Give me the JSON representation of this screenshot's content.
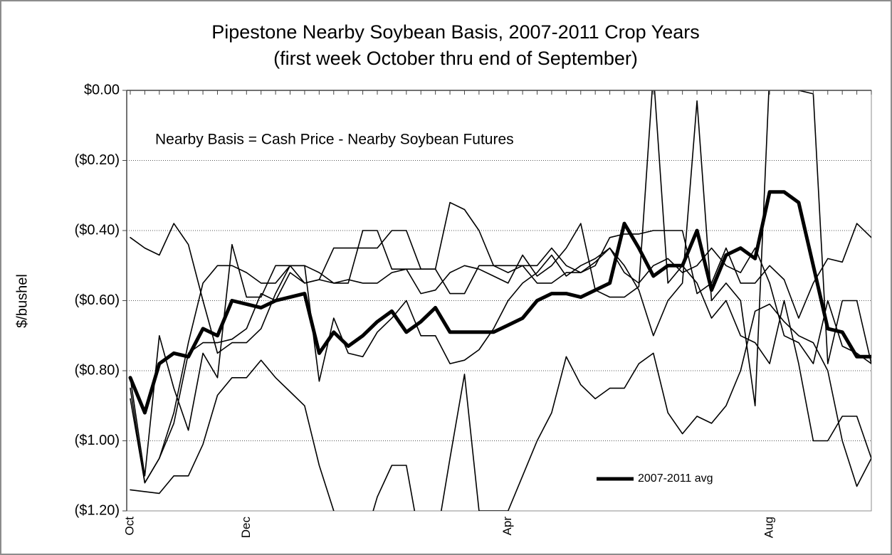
{
  "chart_data": {
    "type": "line",
    "title": "Pipestone Nearby Soybean Basis, 2007-2011 Crop Years",
    "subtitle": "(first week October thru end of September)",
    "y_label": "$/bushel",
    "annotation": "Nearby Basis = Cash Price - Nearby Soybean Futures",
    "categories": [
      "Oct",
      null,
      null,
      null,
      null,
      null,
      null,
      null,
      "Dec",
      null,
      null,
      null,
      null,
      null,
      null,
      null,
      null,
      null,
      null,
      null,
      null,
      null,
      null,
      null,
      null,
      null,
      "Apr",
      null,
      null,
      null,
      null,
      null,
      null,
      null,
      null,
      null,
      null,
      null,
      null,
      null,
      null,
      null,
      null,
      null,
      "Aug",
      null,
      null,
      null,
      null,
      null,
      null,
      null
    ],
    "ylim": [
      -1.2,
      0
    ],
    "yticks": [
      {
        "value": -1.2,
        "label": "($1.20)"
      },
      {
        "value": -1.0,
        "label": "($1.00)"
      },
      {
        "value": -0.8,
        "label": "($0.80)"
      },
      {
        "value": -0.6,
        "label": "($0.60)"
      },
      {
        "value": -0.4,
        "label": "($0.40)"
      },
      {
        "value": -0.2,
        "label": "($0.20)"
      },
      {
        "value": 0,
        "label": "$0.00"
      }
    ],
    "grid": true,
    "legend": "lower right",
    "series": [
      {
        "color": "#000000",
        "values": [
          -0.42,
          -0.45,
          -0.47,
          -0.38,
          -0.44,
          -0.6,
          -0.75,
          -0.72,
          -0.72,
          -0.68,
          -0.58,
          -0.5,
          -0.5,
          -0.52,
          -0.55,
          -0.54,
          -0.55,
          -0.55,
          -0.52,
          -0.51,
          -0.51,
          -0.51,
          -0.32,
          -0.34,
          -0.4,
          -0.5,
          -0.5,
          -0.5,
          -0.55,
          -0.55,
          -0.52,
          -0.52,
          -0.5,
          -0.42,
          -0.41,
          -0.41,
          -0.4,
          -0.4,
          -0.4,
          -0.58,
          -0.55,
          -0.45,
          -0.55,
          -0.55,
          -0.5,
          -0.54,
          -0.65,
          -0.55,
          -0.48,
          -0.49,
          -0.38,
          -0.42
        ]
      },
      {
        "color": "#000000",
        "values": [
          -0.85,
          -1.12,
          -1.05,
          -0.92,
          -0.72,
          -0.55,
          -0.5,
          -0.5,
          -0.52,
          -0.55,
          -0.55,
          -0.5,
          -0.5,
          -0.83,
          -0.65,
          -0.75,
          -0.76,
          -0.69,
          -0.65,
          -0.6,
          -0.7,
          -0.7,
          -0.78,
          -0.77,
          -0.74,
          -0.68,
          -0.6,
          -0.55,
          -0.52,
          -0.47,
          -0.53,
          -0.5,
          -0.48,
          -0.45,
          -0.5,
          -0.57,
          -0.7,
          -0.6,
          -0.55,
          -0.03,
          -0.6,
          -0.55,
          -0.6,
          -0.9,
          0.05,
          0.05,
          0.0,
          -0.01,
          -0.78,
          -0.6,
          -0.6,
          -0.78
        ]
      },
      {
        "color": "#000000",
        "values": [
          -0.82,
          -1.1,
          -0.7,
          -0.85,
          -0.97,
          -0.75,
          -0.82,
          -0.44,
          -0.59,
          -0.59,
          -0.5,
          -0.5,
          -0.55,
          -0.54,
          -0.55,
          -0.55,
          -0.4,
          -0.4,
          -0.51,
          -0.51,
          -0.58,
          -0.57,
          -0.52,
          -0.5,
          -0.51,
          -0.53,
          -0.55,
          -0.47,
          -0.53,
          -0.5,
          -0.45,
          -0.38,
          -0.57,
          -0.59,
          -0.59,
          -0.56,
          0.05,
          -0.55,
          -0.5,
          -0.55,
          -0.65,
          -0.6,
          -0.7,
          -0.72,
          -0.78,
          -0.6,
          -0.78,
          -1.0,
          -1.0,
          -0.93,
          -0.93,
          -1.05
        ]
      },
      {
        "color": "#000000",
        "values": [
          -1.14,
          -1.145,
          -1.15,
          -1.1,
          -1.1,
          -1.01,
          -0.87,
          -0.82,
          -0.82,
          -0.77,
          -0.82,
          -0.86,
          -0.9,
          -1.07,
          -1.2,
          -1.3,
          -1.3,
          -1.16,
          -1.07,
          -1.07,
          -1.3,
          -1.3,
          -1.05,
          -0.81,
          -1.2,
          -1.2,
          -1.2,
          -1.1,
          -1.0,
          -0.92,
          -0.76,
          -0.84,
          -0.88,
          -0.85,
          -0.85,
          -0.78,
          -0.75,
          -0.92,
          -0.98,
          -0.93,
          -0.95,
          -0.9,
          -0.8,
          -0.63,
          -0.61,
          -0.66,
          -0.7,
          -0.72,
          -0.8,
          -1.0,
          -1.13,
          -1.05
        ]
      },
      {
        "color": "#000000",
        "values": [
          -0.88,
          -1.12,
          -1.05,
          -0.95,
          -0.75,
          -0.72,
          -0.72,
          -0.71,
          -0.68,
          -0.58,
          -0.6,
          -0.52,
          -0.55,
          -0.54,
          -0.45,
          -0.45,
          -0.45,
          -0.45,
          -0.4,
          -0.4,
          -0.51,
          -0.51,
          -0.58,
          -0.58,
          -0.5,
          -0.5,
          -0.52,
          -0.5,
          -0.5,
          -0.45,
          -0.5,
          -0.52,
          -0.49,
          -0.45,
          -0.52,
          -0.55,
          -0.5,
          -0.48,
          -0.52,
          -0.5,
          -0.45,
          -0.5,
          -0.52,
          -0.45,
          -0.55,
          -0.7,
          -0.72,
          -0.78,
          -0.6,
          -0.73,
          -0.75,
          -0.78
        ]
      },
      {
        "name": "2007-2011 avg",
        "color": "#000000",
        "width": 5,
        "values": [
          -0.82,
          -0.92,
          -0.78,
          -0.75,
          -0.76,
          -0.68,
          -0.7,
          -0.6,
          -0.61,
          -0.62,
          -0.6,
          -0.59,
          -0.58,
          -0.75,
          -0.69,
          -0.73,
          -0.7,
          -0.66,
          -0.63,
          -0.69,
          -0.66,
          -0.62,
          -0.69,
          -0.69,
          -0.69,
          -0.69,
          -0.67,
          -0.65,
          -0.6,
          -0.58,
          -0.58,
          -0.59,
          -0.57,
          -0.55,
          -0.38,
          -0.45,
          -0.53,
          -0.5,
          -0.5,
          -0.4,
          -0.57,
          -0.47,
          -0.45,
          -0.48,
          -0.29,
          -0.29,
          -0.32,
          -0.5,
          -0.68,
          -0.69,
          -0.76,
          -0.76
        ]
      }
    ]
  }
}
